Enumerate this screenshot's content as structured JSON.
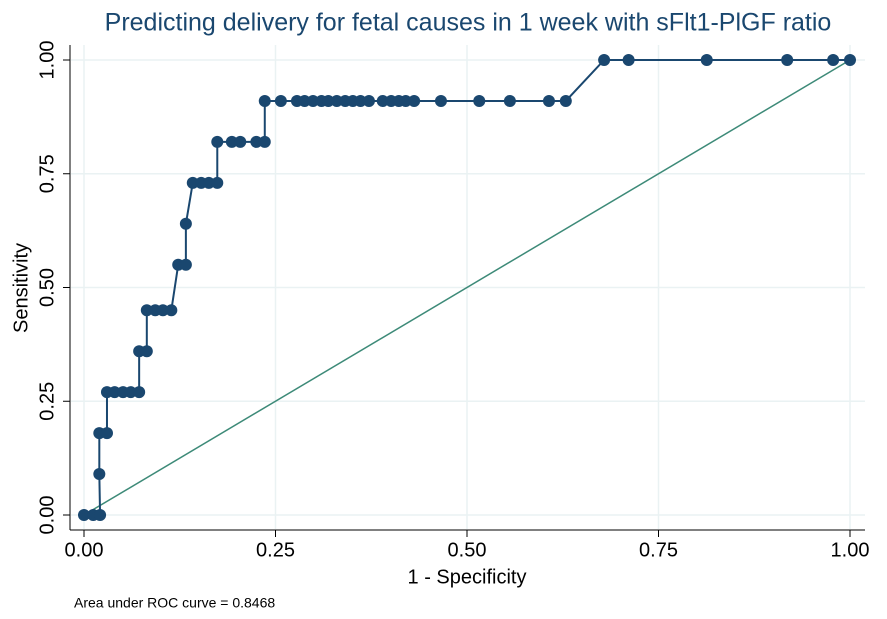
{
  "chart_data": {
    "type": "line",
    "title": "Predicting delivery for fetal causes in 1 week with sFlt1-PlGF ratio",
    "xlabel": "1 - Specificity",
    "ylabel": "Sensitivity",
    "note": "Area under ROC curve = 0.8468",
    "color": "#1a476f",
    "reference_color": "#3d8a78",
    "grid": true,
    "xlim": [
      0,
      1
    ],
    "ylim": [
      0,
      1
    ],
    "xticks": [
      {
        "value": 0,
        "label": "0.00"
      },
      {
        "value": 0.25,
        "label": "0.25"
      },
      {
        "value": 0.5,
        "label": "0.50"
      },
      {
        "value": 0.75,
        "label": "0.75"
      },
      {
        "value": 1,
        "label": "1.00"
      }
    ],
    "yticks": [
      {
        "value": 0,
        "label": "0.00"
      },
      {
        "value": 0.25,
        "label": "0.25"
      },
      {
        "value": 0.5,
        "label": "0.50"
      },
      {
        "value": 0.75,
        "label": "0.75"
      },
      {
        "value": 1,
        "label": "1.00"
      }
    ],
    "x": [
      0,
      0.012,
      0.021,
      0.02,
      0.02,
      0.03,
      0.03,
      0.04,
      0.051,
      0.061,
      0.072,
      0.072,
      0.082,
      0.082,
      0.093,
      0.103,
      0.114,
      0.123,
      0.133,
      0.133,
      0.142,
      0.153,
      0.163,
      0.174,
      0.174,
      0.193,
      0.204,
      0.225,
      0.236,
      0.236,
      0.257,
      0.278,
      0.288,
      0.299,
      0.31,
      0.319,
      0.33,
      0.341,
      0.351,
      0.361,
      0.372,
      0.39,
      0.401,
      0.411,
      0.42,
      0.431,
      0.466,
      0.516,
      0.556,
      0.607,
      0.629,
      0.679,
      0.711,
      0.813,
      0.918,
      0.978,
      1
    ],
    "values": [
      0,
      0,
      0,
      0.09,
      0.18,
      0.18,
      0.27,
      0.27,
      0.27,
      0.27,
      0.27,
      0.36,
      0.36,
      0.45,
      0.45,
      0.45,
      0.45,
      0.55,
      0.55,
      0.64,
      0.73,
      0.73,
      0.73,
      0.73,
      0.82,
      0.82,
      0.82,
      0.82,
      0.82,
      0.91,
      0.91,
      0.91,
      0.91,
      0.91,
      0.91,
      0.91,
      0.91,
      0.91,
      0.91,
      0.91,
      0.91,
      0.91,
      0.91,
      0.91,
      0.91,
      0.91,
      0.91,
      0.91,
      0.91,
      0.91,
      0.91,
      1,
      1,
      1,
      1,
      1,
      1
    ]
  }
}
